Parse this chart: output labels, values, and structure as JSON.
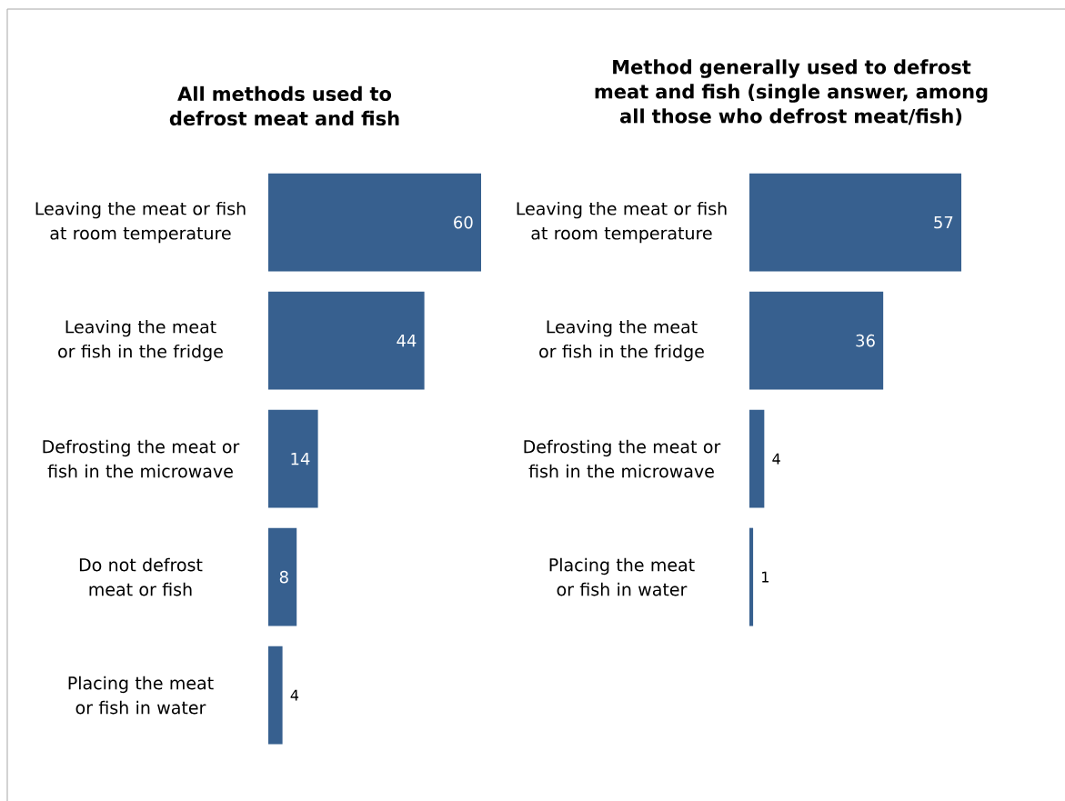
{
  "chart_data": [
    {
      "type": "bar",
      "orientation": "horizontal",
      "title": "All methods used to defrost meat and fish",
      "categories": [
        "Leaving the meat or fish at room temperature",
        "Leaving the meat or fish in the fridge",
        "Defrosting the meat or fish in the microwave",
        "Do not defrost meat or fish",
        "Placing the meat or fish in water"
      ],
      "values": [
        60,
        44,
        14,
        8,
        4
      ],
      "color": "#37608f",
      "xlim": [
        0,
        60
      ],
      "data_labels": true
    },
    {
      "type": "bar",
      "orientation": "horizontal",
      "title": "Method generally used to defrost meat and fish (single answer, among all those who defrost meat/fish)",
      "categories": [
        "Leaving the meat or fish at room temperature",
        "Leaving the meat or fish in the fridge",
        "Defrosting the meat or fish in the microwave",
        "Placing the meat or fish in water"
      ],
      "values": [
        57,
        36,
        4,
        1
      ],
      "color": "#37608f",
      "xlim": [
        0,
        57
      ],
      "data_labels": true
    }
  ]
}
